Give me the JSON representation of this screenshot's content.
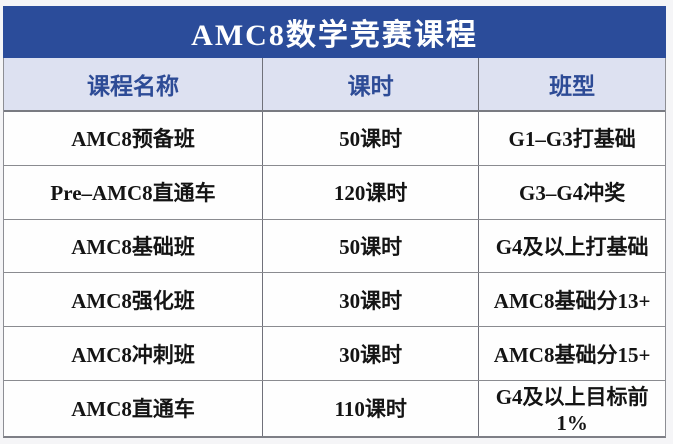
{
  "table": {
    "title": "AMC8数学竞赛课程",
    "columns": [
      "课程名称",
      "课时",
      "班型"
    ],
    "rows": [
      {
        "name": "AMC8预备班",
        "hours": "50课时",
        "type": "G1–G3打基础"
      },
      {
        "name": "Pre–AMC8直通车",
        "hours": "120课时",
        "type": "G3–G4冲奖"
      },
      {
        "name": "AMC8基础班",
        "hours": "50课时",
        "type": "G4及以上打基础"
      },
      {
        "name": "AMC8强化班",
        "hours": "30课时",
        "type": "AMC8基础分13+"
      },
      {
        "name": "AMC8冲刺班",
        "hours": "30课时",
        "type": "AMC8基础分15+"
      },
      {
        "name": "AMC8直通车",
        "hours": "110课时",
        "type": "G4及以上目标前1%"
      }
    ],
    "colors": {
      "title_bg": "#2b4c9a",
      "title_text": "#ffffff",
      "header_bg": "#dde1f1",
      "header_text": "#2d4b96",
      "body_text": "#141414",
      "grid_line": "#8a8b90"
    }
  }
}
